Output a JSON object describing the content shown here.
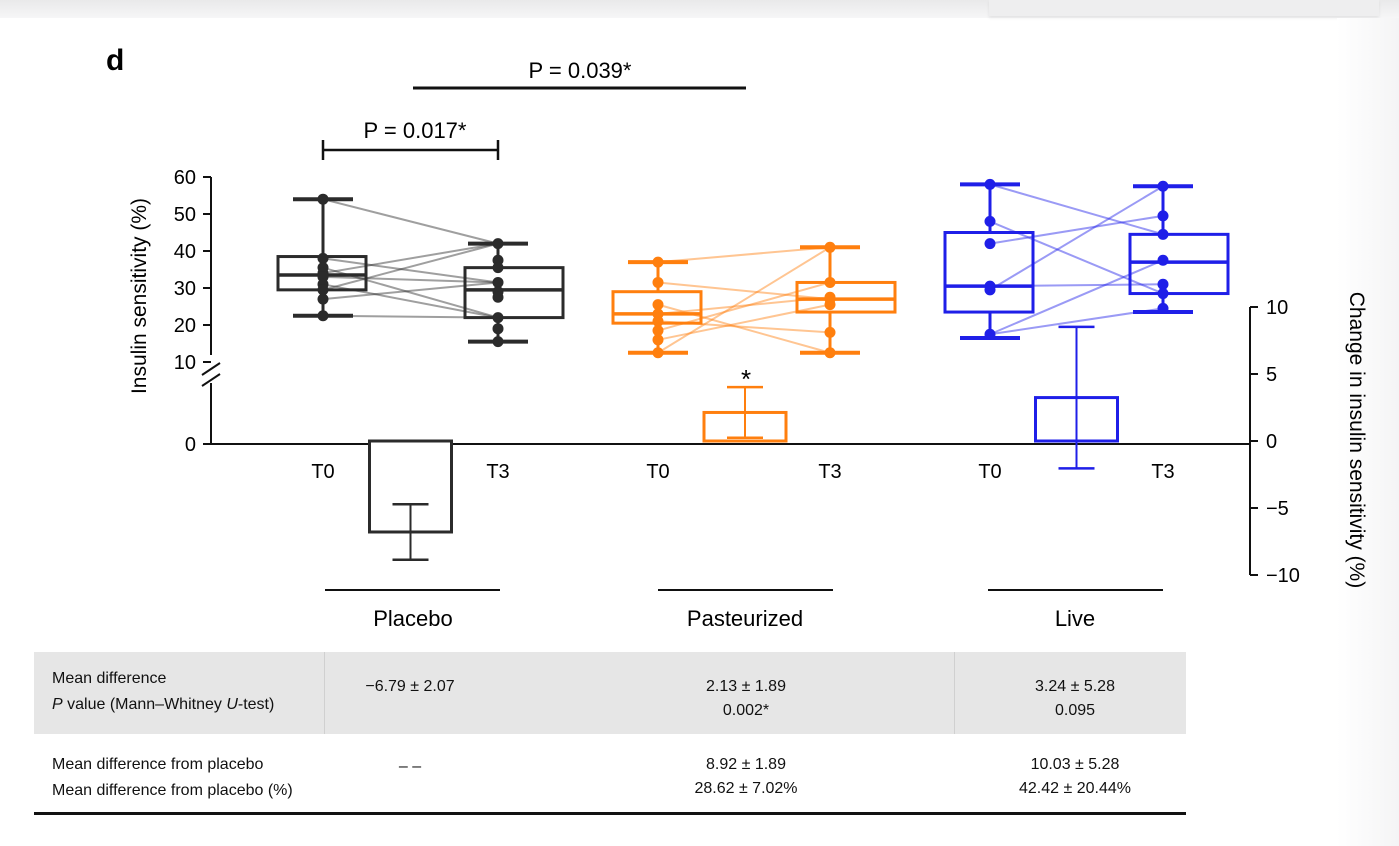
{
  "panel_label": "d",
  "significance": {
    "top_bracket": "P = 0.039*",
    "placebo_bracket": "P = 0.017*",
    "pasteurized_star": "*"
  },
  "chart_data": {
    "type": "box",
    "title": "",
    "y_left": {
      "label": "Insulin sensitivity (%)",
      "ticks": [
        "60",
        "50",
        "40",
        "30",
        "20",
        "10",
        "0"
      ],
      "range": [
        0,
        60
      ],
      "axis_break": true
    },
    "y_right": {
      "label": "Change in insulin sensitivity (%)",
      "ticks": [
        "10",
        "5",
        "0",
        "−5",
        "−10"
      ],
      "range": [
        -10,
        10
      ]
    },
    "x_ticks": [
      "T0",
      "T3",
      "T0",
      "T3",
      "T0",
      "T3"
    ],
    "groups": [
      {
        "name": "Placebo",
        "color": "#2b2b2b",
        "T0": {
          "min": 22.5,
          "q1": 29.5,
          "median": 33.5,
          "q3": 38.5,
          "max": 54,
          "points": [
            54,
            38,
            35.5,
            34,
            33,
            31,
            29.5,
            27,
            22.5
          ]
        },
        "T3": {
          "min": 15.5,
          "q1": 22,
          "median": 29.5,
          "q3": 35.5,
          "max": 42,
          "points": [
            42,
            37.5,
            35.5,
            31.5,
            29,
            27.5,
            22,
            19,
            15.5
          ]
        },
        "change": {
          "mean": -6.79,
          "sem": 2.07
        }
      },
      {
        "name": "Pasteurized",
        "color": "#ff7f0e",
        "T0": {
          "min": 12.5,
          "q1": 20.5,
          "median": 23,
          "q3": 29,
          "max": 37,
          "points": [
            37,
            31.5,
            25.5,
            23,
            21,
            18.5,
            16,
            12.5
          ]
        },
        "T3": {
          "min": 12.5,
          "q1": 23.5,
          "median": 27,
          "q3": 31.5,
          "max": 41,
          "points": [
            41,
            31.5,
            27.5,
            27,
            25.5,
            18,
            12.5
          ]
        },
        "change": {
          "mean": 2.13,
          "sem": 1.89
        }
      },
      {
        "name": "Live",
        "color": "#1f1fe8",
        "T0": {
          "min": 16.5,
          "q1": 23.5,
          "median": 30.5,
          "q3": 45,
          "max": 58,
          "points": [
            58,
            48,
            42,
            30.5,
            29.5,
            17.5
          ]
        },
        "T3": {
          "min": 23.5,
          "q1": 28.5,
          "median": 37,
          "q3": 44.5,
          "max": 57.5,
          "points": [
            57.5,
            49.5,
            44.5,
            37.5,
            31,
            28.5,
            24.5
          ]
        },
        "change": {
          "mean": 3.24,
          "sem": 5.28
        }
      }
    ]
  },
  "table": {
    "row1_labels": [
      "Mean difference",
      "P value (Mann–Whitney U-test)"
    ],
    "row2_labels": [
      "Mean difference from placebo",
      "Mean difference from placebo (%)"
    ],
    "placebo": {
      "row1": [
        "−6.79 ± 2.07"
      ],
      "row2": [
        "– –"
      ]
    },
    "pasteurized": {
      "row1": [
        "2.13 ± 1.89",
        "0.002*"
      ],
      "row2": [
        "8.92 ± 1.89",
        "28.62 ± 7.02%"
      ]
    },
    "live": {
      "row1": [
        "3.24 ± 5.28",
        "0.095"
      ],
      "row2": [
        "10.03 ± 5.28",
        "42.42 ± 20.44%"
      ]
    }
  }
}
